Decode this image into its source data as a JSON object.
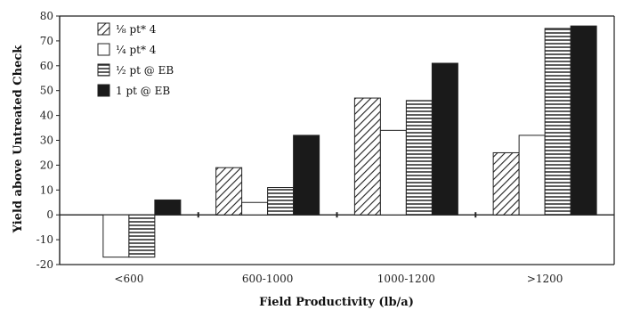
{
  "chart_data": {
    "type": "bar",
    "xlabel": "Field Productivity (lb/a)",
    "ylabel": "Yield above Untreated Check",
    "ylim": [
      -20,
      80
    ],
    "yticks": [
      -20,
      -10,
      0,
      10,
      20,
      30,
      40,
      50,
      60,
      70,
      80
    ],
    "categories": [
      "<600",
      "600-1000",
      "1000-1200",
      ">1200"
    ],
    "legend_position": "top-left",
    "grid": false,
    "series": [
      {
        "name": "⅛ pt* 4",
        "pattern": "diagonal",
        "values": [
          0,
          19,
          47,
          25
        ]
      },
      {
        "name": "¼ pt* 4",
        "pattern": "white",
        "values": [
          -17,
          5,
          34,
          32
        ]
      },
      {
        "name": "½ pt @ EB",
        "pattern": "horizontal",
        "values": [
          -17,
          11,
          46,
          75
        ]
      },
      {
        "name": "1 pt @ EB",
        "pattern": "solid",
        "values": [
          6,
          32,
          61,
          76
        ]
      }
    ]
  }
}
